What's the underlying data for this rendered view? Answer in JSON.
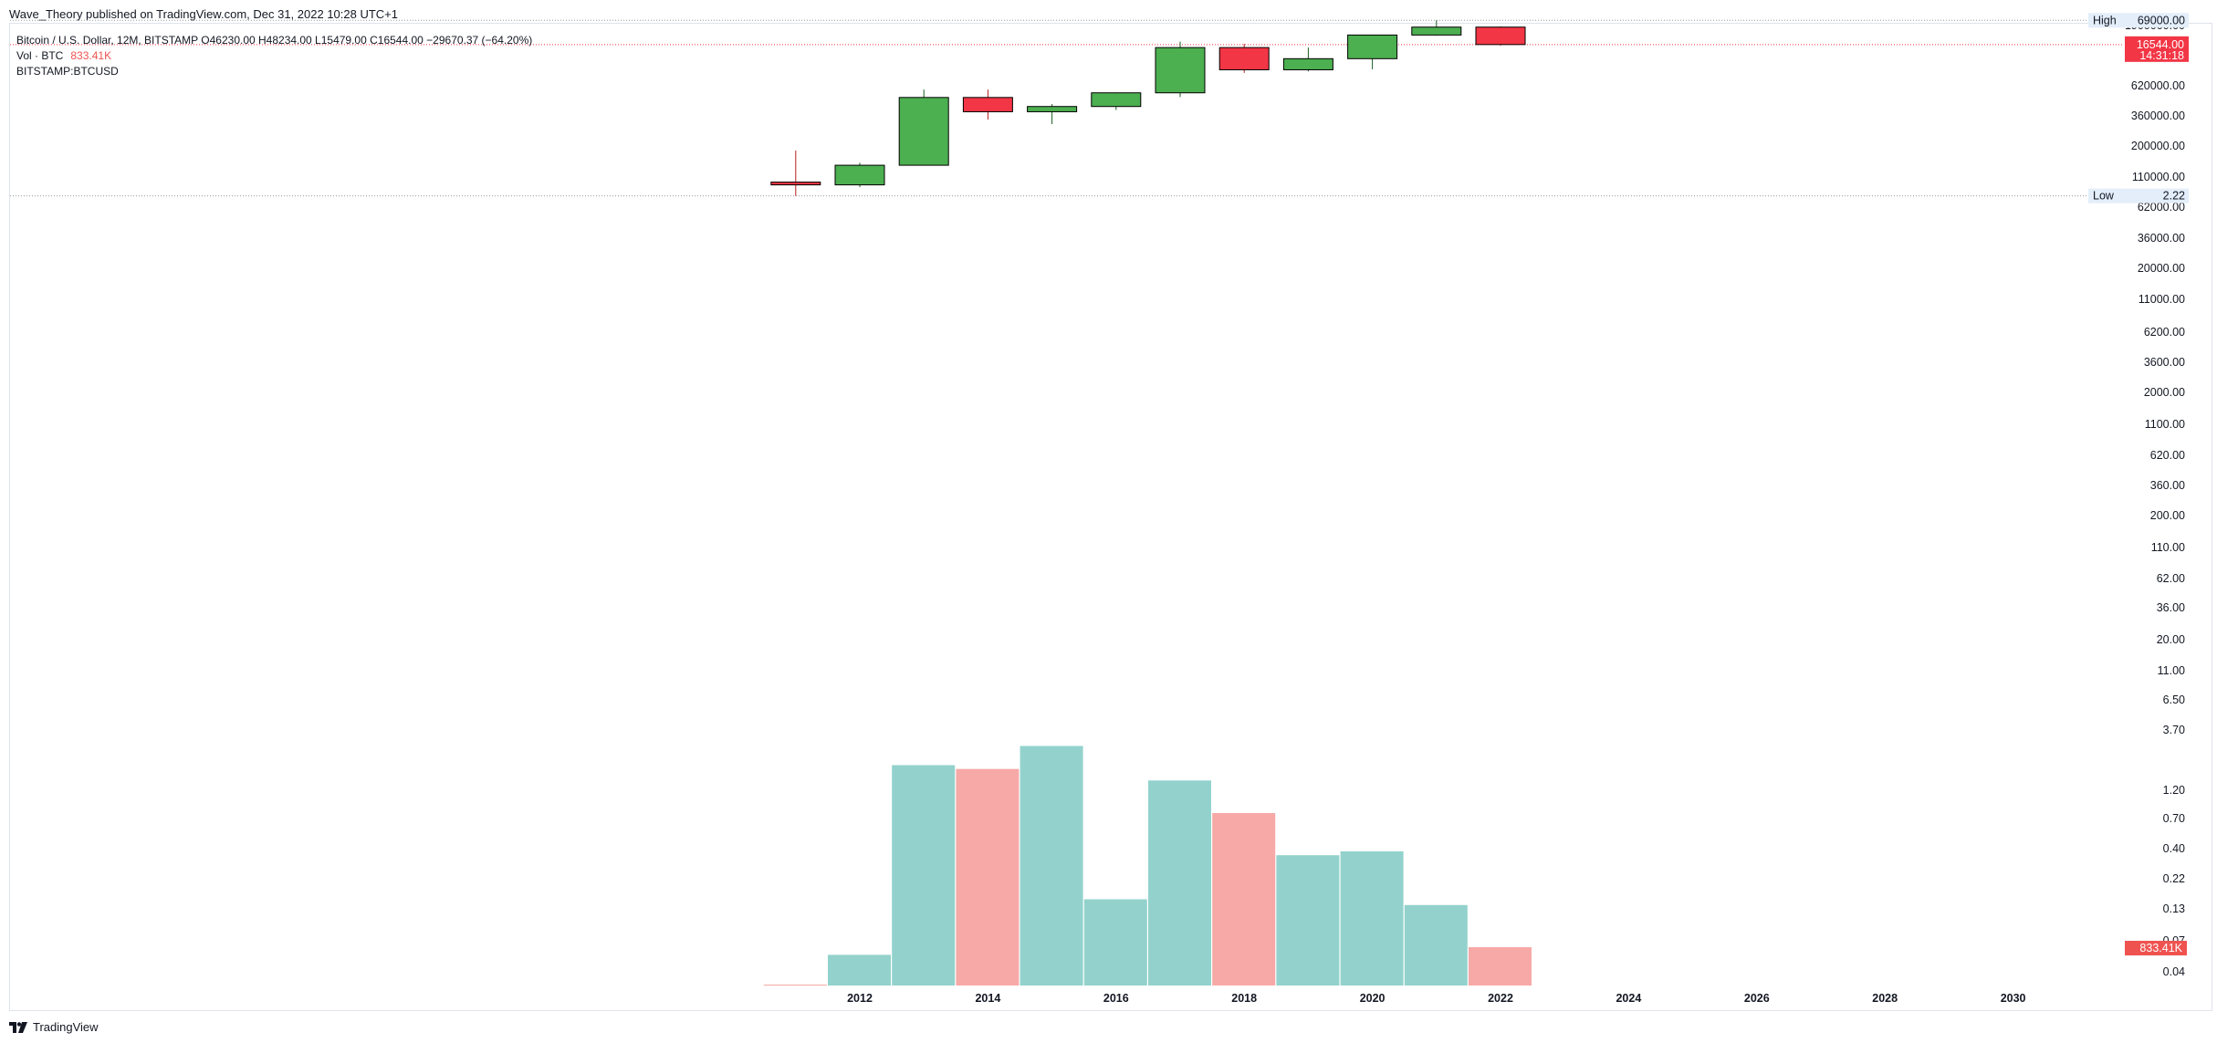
{
  "header": {
    "published_by": "Wave_Theory published on TradingView.com, Dec 31, 2022 10:28 UTC+1"
  },
  "legend": {
    "symbol_line": "Bitcoin / U.S. Dollar, 12M, BITSTAMP  O46230.00  H48234.00  L15479.00  C16544.00  −29670.37 (−64.20%)",
    "vol_label": "Vol · BTC",
    "vol_value": "833.41K",
    "symbol_code": "BITSTAMP:BTCUSD"
  },
  "footer": {
    "brand": "TradingView"
  },
  "colors": {
    "up": "#4caf50",
    "down": "#f23645",
    "vol_up": "#93d2cc",
    "vol_down": "#f7a9a7",
    "price_tag": "#f23645",
    "vol_tag": "#ef5350",
    "hl_tag_bg": "#e3eefa"
  },
  "chart_data": {
    "type": "candlestick",
    "price_scale": "log",
    "x_tick_labels": [
      "2012",
      "2014",
      "2016",
      "2018",
      "2020",
      "2022",
      "2024",
      "2026",
      "2028",
      "2030"
    ],
    "y_tick_labels": [
      "1900000.00",
      "1100000.00",
      "620000.00",
      "360000.00",
      "200000.00",
      "110000.00",
      "62000.00",
      "36000.00",
      "20000.00",
      "11000.00",
      "6200.00",
      "3600.00",
      "2000.00",
      "1100.00",
      "620.00",
      "360.00",
      "200.00",
      "110.00",
      "62.00",
      "36.00",
      "20.00",
      "11.00",
      "6.50",
      "3.70",
      "1.20",
      "0.70",
      "0.40",
      "0.22",
      "0.13",
      "0.07",
      "0.04"
    ],
    "high_marker": {
      "label": "High",
      "value": "69000.00"
    },
    "low_marker": {
      "label": "Low",
      "value": "2.22"
    },
    "last_price": {
      "value": "16544.00",
      "countdown": "14:31:18"
    },
    "volume_last": "833.41K",
    "candles": [
      {
        "year": 2011,
        "open": 5.0,
        "high": 32.0,
        "low": 2.22,
        "close": 4.25,
        "volume": 0.0
      },
      {
        "year": 2012,
        "open": 4.25,
        "high": 15.6,
        "low": 3.7,
        "close": 13.5,
        "volume": 0.16
      },
      {
        "year": 2013,
        "open": 13.5,
        "high": 1163.0,
        "low": 13.2,
        "close": 732.0,
        "volume": 1.15
      },
      {
        "year": 2014,
        "open": 732.0,
        "high": 1165.0,
        "low": 200.0,
        "close": 316.0,
        "volume": 1.13
      },
      {
        "year": 2015,
        "open": 316.0,
        "high": 495.0,
        "low": 152.0,
        "close": 430.0,
        "volume": 1.25
      },
      {
        "year": 2016,
        "open": 430.0,
        "high": 981.0,
        "low": 350.0,
        "close": 963.0,
        "volume": 0.45
      },
      {
        "year": 2017,
        "open": 963.0,
        "high": 19666.0,
        "low": 750.0,
        "close": 13850.0,
        "volume": 1.07
      },
      {
        "year": 2018,
        "open": 13850.0,
        "high": 17252.0,
        "low": 3122.0,
        "close": 3742.0,
        "volume": 0.9
      },
      {
        "year": 2019,
        "open": 3742.0,
        "high": 13880.0,
        "low": 3400.0,
        "close": 7194.0,
        "volume": 0.68
      },
      {
        "year": 2020,
        "open": 7194.0,
        "high": 29300.0,
        "low": 3850.0,
        "close": 28990.0,
        "volume": 0.7
      },
      {
        "year": 2021,
        "open": 28990.0,
        "high": 69000.0,
        "low": 28000.0,
        "close": 46230.0,
        "volume": 0.42
      },
      {
        "year": 2022,
        "open": 46230.0,
        "high": 48234.0,
        "low": 15479.0,
        "close": 16544.0,
        "volume": 0.2
      }
    ]
  }
}
